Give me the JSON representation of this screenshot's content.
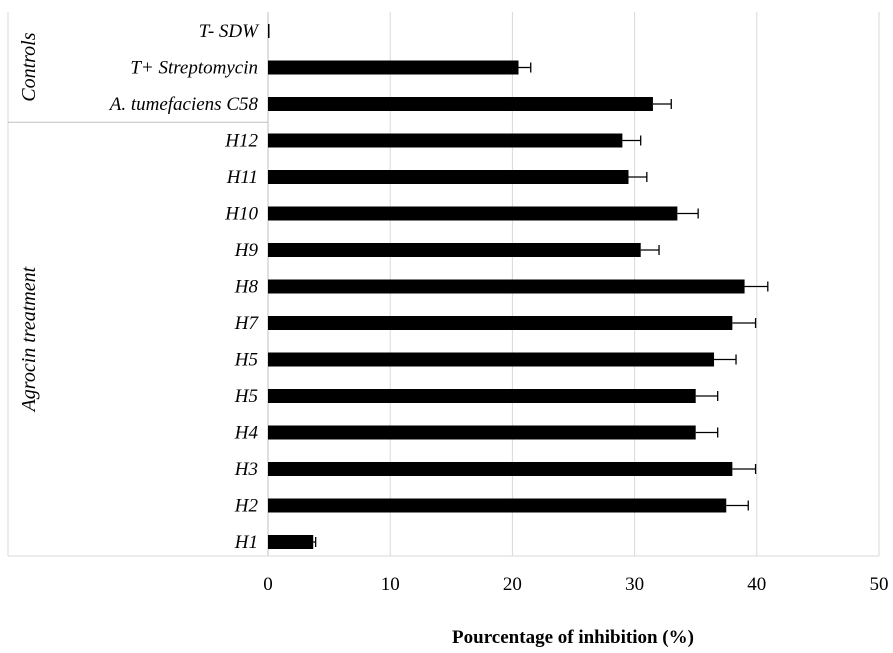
{
  "chart_data": {
    "type": "bar",
    "orientation": "horizontal",
    "title": "",
    "xlabel": "Pourcentage of inhibition (%)",
    "ylabel": "",
    "xlim": [
      0,
      50
    ],
    "xticks": [
      0,
      10,
      20,
      30,
      40,
      50
    ],
    "grid": "vertical",
    "legend": "none",
    "bar_color": "#000000",
    "grid_color": "#d9d9d9",
    "categories": [
      "T- SDW",
      "T+ Streptomycin",
      "A. tumefaciens C58",
      "H12",
      "H11",
      "H10",
      "H9",
      "H8",
      "H7",
      "H5",
      "H5",
      "H4",
      "H3",
      "H2",
      "H1"
    ],
    "values": [
      0,
      20.5,
      31.5,
      29,
      29.5,
      33.5,
      30.5,
      39,
      38,
      36.5,
      35,
      35,
      38,
      37.5,
      3.7
    ],
    "errors": [
      0,
      1.0,
      1.5,
      1.5,
      1.5,
      1.7,
      1.5,
      1.9,
      1.9,
      1.8,
      1.8,
      1.8,
      1.9,
      1.8,
      0.2
    ],
    "groups": [
      {
        "label": "Controls",
        "count": 3
      },
      {
        "label": "Agrocin treatment",
        "count": 12
      }
    ]
  }
}
